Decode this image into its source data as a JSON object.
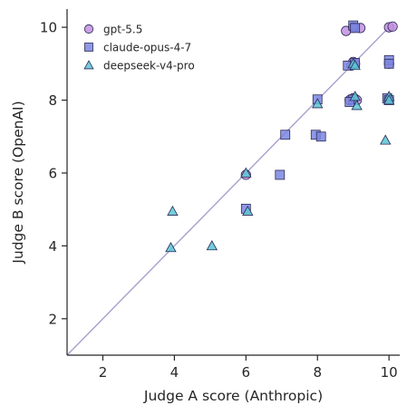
{
  "chart_data": {
    "type": "scatter",
    "title": "",
    "xlabel": "Judge A score (Anthropic)",
    "ylabel": "Judge B score (OpenAI)",
    "xlim": [
      1,
      10.3
    ],
    "ylim": [
      1,
      10.5
    ],
    "xticks": [
      2,
      4,
      6,
      8,
      10
    ],
    "yticks": [
      2,
      4,
      6,
      8,
      10
    ],
    "grid": false,
    "legend_position": "top-left",
    "reference_line": {
      "from": [
        1,
        1
      ],
      "to": [
        10,
        10
      ],
      "color": "#a99fcf"
    },
    "series": [
      {
        "name": "gpt-5.5",
        "marker": "circle",
        "color": "#c38fe0",
        "points": [
          [
            6,
            5.95
          ],
          [
            8.8,
            9.9
          ],
          [
            9.0,
            10.0
          ],
          [
            9.2,
            9.98
          ],
          [
            9.0,
            9.05
          ],
          [
            8.95,
            8.95
          ],
          [
            9.05,
            9.0
          ],
          [
            9.0,
            8.05
          ],
          [
            9.1,
            8.0
          ],
          [
            10.0,
            10.0
          ],
          [
            10.1,
            10.02
          ],
          [
            10.0,
            9.0
          ],
          [
            8.9,
            8.0
          ]
        ]
      },
      {
        "name": "claude-opus-4-7",
        "marker": "square",
        "color": "#7b86e0",
        "points": [
          [
            6,
            5.02
          ],
          [
            6.95,
            5.95
          ],
          [
            7.1,
            7.05
          ],
          [
            7.95,
            7.05
          ],
          [
            8.1,
            7.0
          ],
          [
            8.0,
            8.02
          ],
          [
            8.85,
            8.95
          ],
          [
            9.05,
            9.02
          ],
          [
            9.0,
            10.05
          ],
          [
            9.05,
            9.98
          ],
          [
            9.0,
            8.02
          ],
          [
            8.9,
            7.95
          ],
          [
            10.0,
            9.1
          ],
          [
            10.0,
            9.0
          ],
          [
            9.95,
            8.05
          ],
          [
            10.0,
            8.0
          ]
        ]
      },
      {
        "name": "deepseek-v4-pro",
        "marker": "triangle",
        "color": "#5cc6d6",
        "points": [
          [
            3.95,
            4.95
          ],
          [
            3.9,
            3.95
          ],
          [
            5.05,
            4.0
          ],
          [
            6.0,
            6.0
          ],
          [
            6.05,
            4.95
          ],
          [
            8.0,
            7.9
          ],
          [
            9.05,
            8.1
          ],
          [
            9.1,
            7.85
          ],
          [
            9.0,
            9.0
          ],
          [
            9.05,
            8.95
          ],
          [
            9.9,
            6.9
          ],
          [
            10.0,
            8.1
          ],
          [
            10.0,
            8.0
          ]
        ]
      }
    ]
  }
}
